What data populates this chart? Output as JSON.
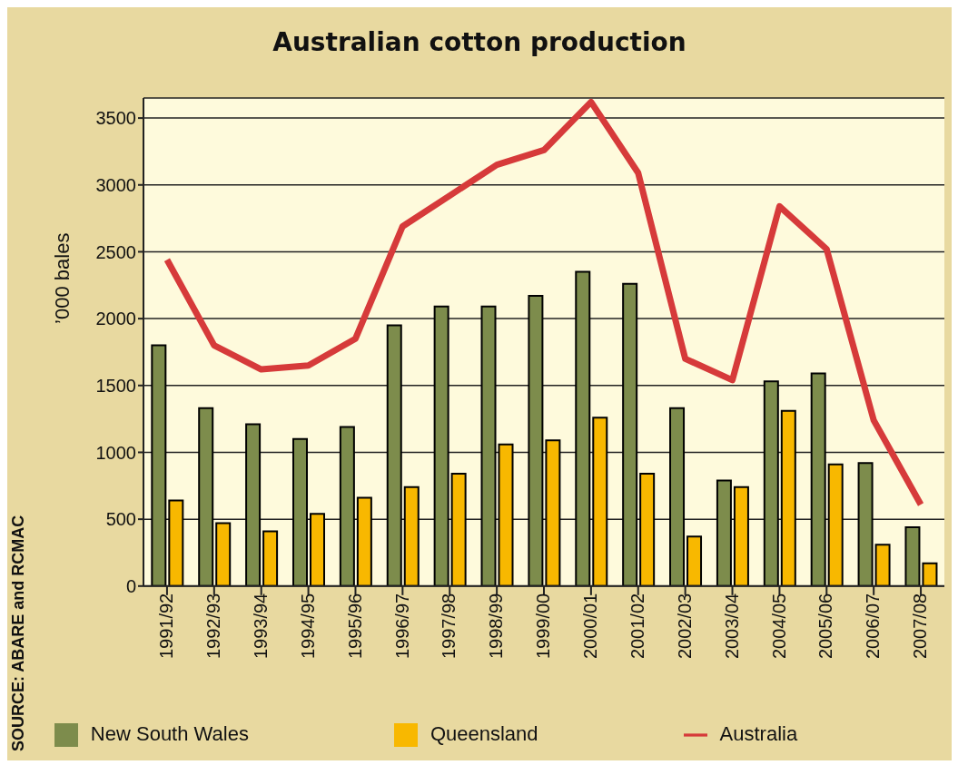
{
  "chart_data": {
    "type": "bar",
    "title": "Australian cotton production",
    "ylabel": "’000 bales",
    "annotations": [
      "SOURCE: ABARE and RCMAC"
    ],
    "categories": [
      "1991/92",
      "1992/93",
      "1993/94",
      "1994/95",
      "1995/96",
      "1996/97",
      "1997/98",
      "1998/99",
      "1999/00",
      "2000/01",
      "2001/02",
      "2002/03",
      "2003/04",
      "2004/05",
      "2005/06",
      "2006/07",
      "2007/08"
    ],
    "series": [
      {
        "name": "New South Wales",
        "color": "#7d8c4c",
        "values": [
          1800,
          1330,
          1210,
          1100,
          1190,
          1950,
          2090,
          2090,
          2170,
          2350,
          2260,
          1330,
          790,
          1530,
          1590,
          920,
          440
        ]
      },
      {
        "name": "Queensland",
        "color": "#f8b800",
        "values": [
          640,
          470,
          410,
          540,
          660,
          740,
          840,
          1060,
          1090,
          1260,
          840,
          370,
          740,
          1310,
          910,
          310,
          170
        ]
      },
      {
        "name": "Australia",
        "type": "line",
        "color": "#d63a3a",
        "values": [
          2440,
          1800,
          1620,
          1650,
          1850,
          2690,
          2920,
          3150,
          3260,
          3620,
          3090,
          1700,
          1540,
          2840,
          2520,
          1240,
          610
        ]
      }
    ],
    "ylim": [
      0,
      3650
    ],
    "yticks": [
      0,
      500,
      1000,
      1500,
      2000,
      2500,
      3000,
      3500
    ],
    "grid": "y",
    "legend": "bottom",
    "marker": "none",
    "line_style": "solid"
  }
}
